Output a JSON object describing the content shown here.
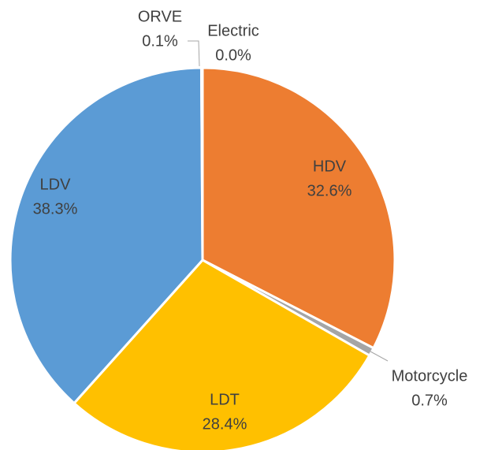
{
  "chart_data": {
    "type": "pie",
    "categories": [
      "Electric",
      "HDV",
      "Motorcycle",
      "LDT",
      "LDV",
      "ORVE"
    ],
    "values": [
      0.0,
      32.6,
      0.7,
      28.4,
      38.3,
      0.1
    ],
    "value_labels": [
      "0.0%",
      "32.6%",
      "0.7%",
      "28.4%",
      "38.3%",
      "0.1%"
    ],
    "colors": [
      "#70ad47",
      "#ed7d31",
      "#a5a5a5",
      "#ffc000",
      "#5b9bd5",
      "#4472c4"
    ]
  }
}
